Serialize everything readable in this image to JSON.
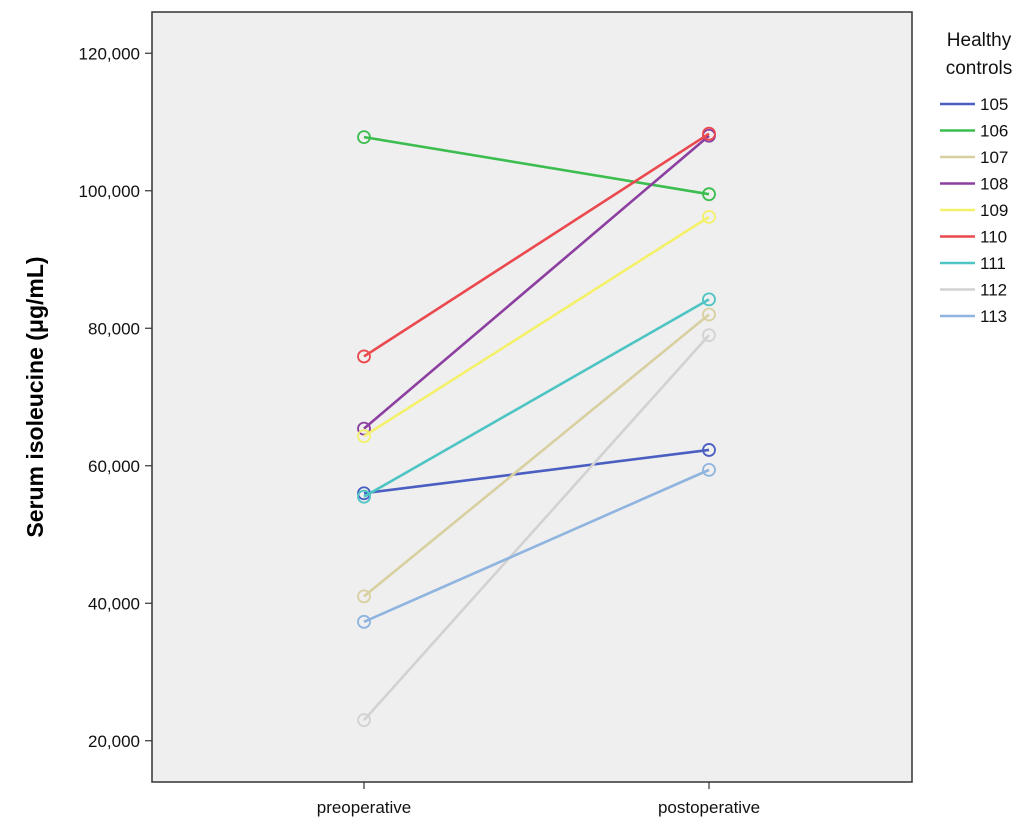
{
  "chart_data": {
    "type": "line",
    "categories": [
      "preoperative",
      "postoperative"
    ],
    "ylabel": "Serum isoleucine (μg/mL)",
    "xlabel": "",
    "ylim": [
      14000,
      126000
    ],
    "yticks": [
      20000,
      40000,
      60000,
      80000,
      100000,
      120000
    ],
    "ytick_labels": [
      "20,000",
      "40,000",
      "60,000",
      "80,000",
      "100,000",
      "120,000"
    ],
    "grid": false,
    "legend": {
      "title_line1": "Healthy",
      "title_line2": "controls",
      "placement": "right"
    },
    "series": [
      {
        "name": "105",
        "color": "#4a5fc1",
        "values": [
          56000,
          62300
        ]
      },
      {
        "name": "106",
        "color": "#3cbd4f",
        "values": [
          107800,
          99500
        ]
      },
      {
        "name": "107",
        "color": "#d8d0a0",
        "values": [
          41000,
          82000
        ]
      },
      {
        "name": "108",
        "color": "#8c3fa0",
        "values": [
          65400,
          108000
        ]
      },
      {
        "name": "109",
        "color": "#f4f06a",
        "values": [
          64300,
          96200
        ]
      },
      {
        "name": "110",
        "color": "#ea4a4f",
        "values": [
          75900,
          108300
        ]
      },
      {
        "name": "111",
        "color": "#4ec4c4",
        "values": [
          55500,
          84200
        ]
      },
      {
        "name": "112",
        "color": "#d2d2d2",
        "values": [
          23000,
          79000
        ]
      },
      {
        "name": "113",
        "color": "#8fb4df",
        "values": [
          37300,
          59400
        ]
      }
    ]
  }
}
